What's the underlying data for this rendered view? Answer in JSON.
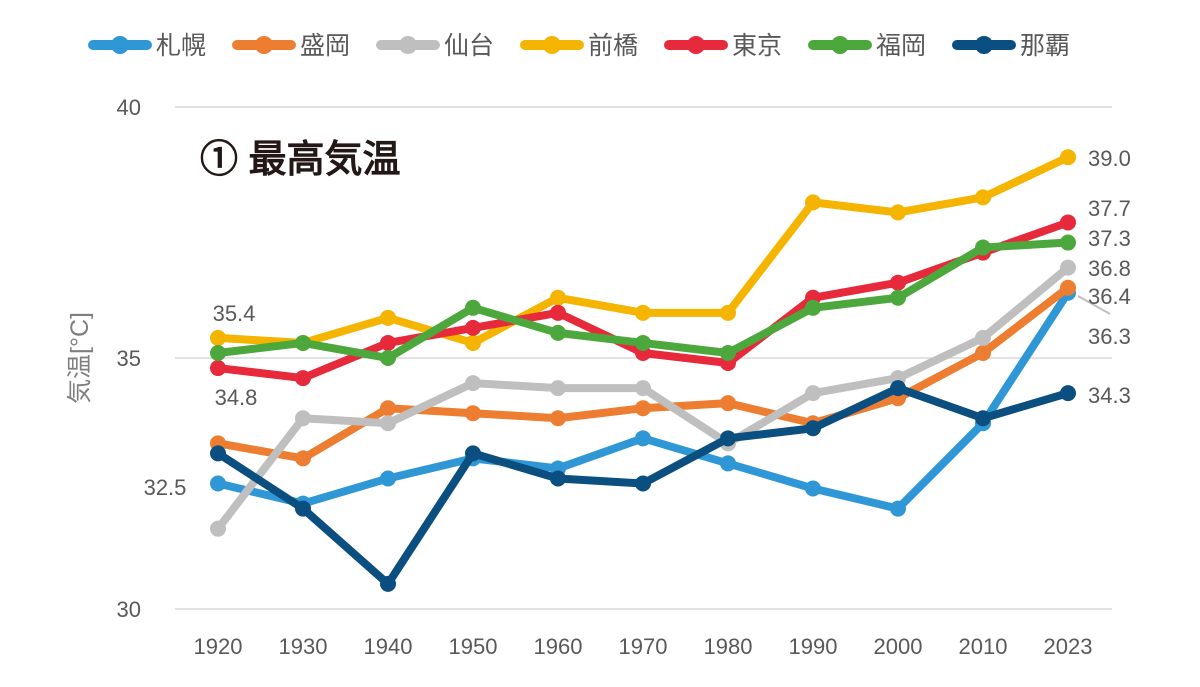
{
  "chart_data": {
    "type": "line",
    "title": "① 最高気温",
    "ylabel": "気温[°C]",
    "ylim": [
      30,
      40
    ],
    "yticks": [
      40,
      35,
      30
    ],
    "grid": true,
    "legend": "top",
    "categories": [
      "1920",
      "1930",
      "1940",
      "1950",
      "1960",
      "1970",
      "1980",
      "1990",
      "2000",
      "2010",
      "2023"
    ],
    "series": [
      {
        "name": "札幌",
        "color": "#2F97D5",
        "values": [
          32.5,
          32.1,
          32.6,
          33.0,
          32.8,
          33.4,
          32.9,
          32.4,
          32.0,
          33.7,
          36.3
        ]
      },
      {
        "name": "盛岡",
        "color": "#ED7D31",
        "values": [
          33.3,
          33.0,
          34.0,
          33.9,
          33.8,
          34.0,
          34.1,
          33.7,
          34.2,
          35.1,
          36.4
        ]
      },
      {
        "name": "仙台",
        "color": "#BFBFBF",
        "values": [
          31.6,
          33.8,
          33.7,
          34.5,
          34.4,
          34.4,
          33.3,
          34.3,
          34.6,
          35.4,
          36.8
        ]
      },
      {
        "name": "前橋",
        "color": "#F5B400",
        "values": [
          35.4,
          35.3,
          35.8,
          35.3,
          36.2,
          35.9,
          35.9,
          38.1,
          37.9,
          38.2,
          39.0
        ]
      },
      {
        "name": "東京",
        "color": "#E72A3B",
        "values": [
          34.8,
          34.6,
          35.3,
          35.6,
          35.9,
          35.1,
          34.9,
          36.2,
          36.5,
          37.1,
          37.7
        ]
      },
      {
        "name": "福岡",
        "color": "#4CA83C",
        "values": [
          35.1,
          35.3,
          35.0,
          36.0,
          35.5,
          35.3,
          35.1,
          36.0,
          36.2,
          37.2,
          37.3
        ]
      },
      {
        "name": "那覇",
        "color": "#0B4F80",
        "values": [
          33.1,
          32.0,
          30.5,
          33.1,
          32.6,
          32.5,
          33.4,
          33.6,
          34.4,
          33.8,
          34.3
        ]
      }
    ],
    "data_labels": [
      "35.4",
      "34.8",
      "32.5",
      "39.0",
      "37.7",
      "37.3",
      "36.8",
      "36.4",
      "36.3",
      "34.3"
    ]
  }
}
